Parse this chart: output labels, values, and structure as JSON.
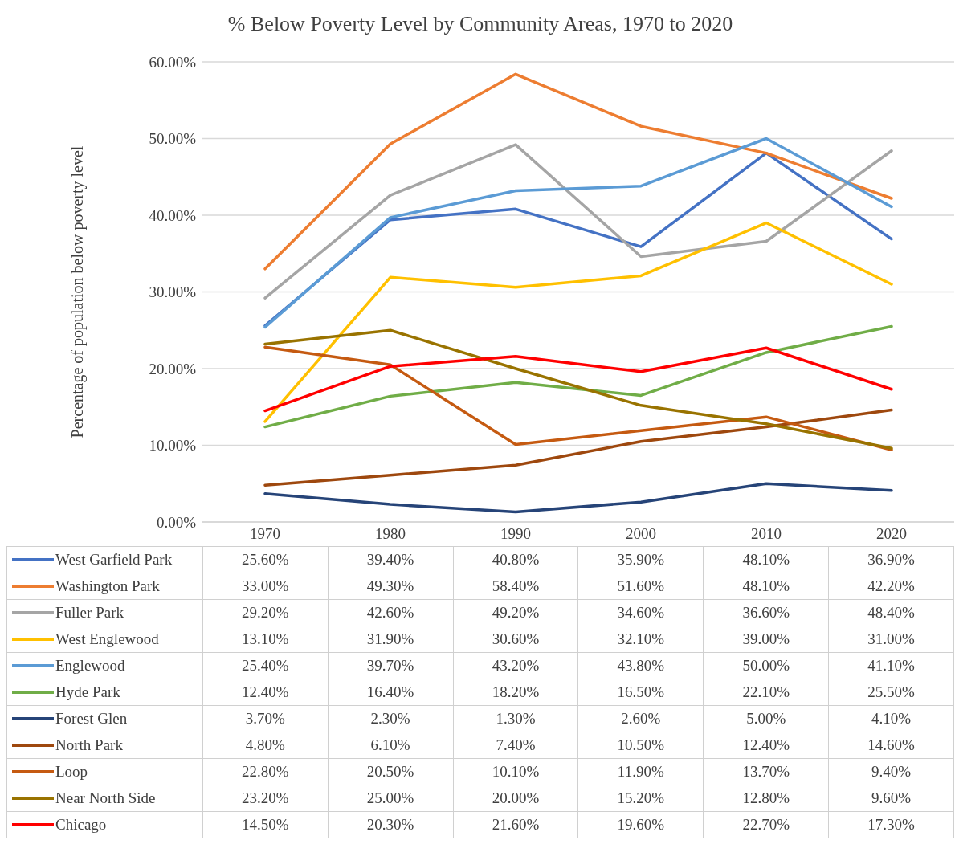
{
  "chart_data": {
    "type": "line",
    "title": "% Below Poverty Level by Community Areas, 1970 to 2020",
    "ylabel": "Percentage of population below poverty level",
    "categories": [
      "1970",
      "1980",
      "1990",
      "2000",
      "2010",
      "2020"
    ],
    "ylim": [
      0,
      60
    ],
    "yticks": [
      {
        "value": 0,
        "label": "0.00%"
      },
      {
        "value": 10,
        "label": "10.00%"
      },
      {
        "value": 20,
        "label": "20.00%"
      },
      {
        "value": 30,
        "label": "30.00%"
      },
      {
        "value": 40,
        "label": "40.00%"
      },
      {
        "value": 50,
        "label": "50.00%"
      },
      {
        "value": 60,
        "label": "60.00%"
      }
    ],
    "grid": "y",
    "legend": "bottom",
    "marker": "none",
    "line_style": "solid",
    "series": [
      {
        "name": "West Garfield Park",
        "color": "#4472c4",
        "values": [
          25.6,
          39.4,
          40.8,
          35.9,
          48.1,
          36.9
        ],
        "value_labels": [
          "25.60%",
          "39.40%",
          "40.80%",
          "35.90%",
          "48.10%",
          "36.90%"
        ]
      },
      {
        "name": "Washington Park",
        "color": "#ed7d31",
        "values": [
          33.0,
          49.3,
          58.4,
          51.6,
          48.1,
          42.2
        ],
        "value_labels": [
          "33.00%",
          "49.30%",
          "58.40%",
          "51.60%",
          "48.10%",
          "42.20%"
        ]
      },
      {
        "name": "Fuller Park",
        "color": "#a5a5a5",
        "values": [
          29.2,
          42.6,
          49.2,
          34.6,
          36.6,
          48.4
        ],
        "value_labels": [
          "29.20%",
          "42.60%",
          "49.20%",
          "34.60%",
          "36.60%",
          "48.40%"
        ]
      },
      {
        "name": "West Englewood",
        "color": "#ffc000",
        "values": [
          13.1,
          31.9,
          30.6,
          32.1,
          39.0,
          31.0
        ],
        "value_labels": [
          "13.10%",
          "31.90%",
          "30.60%",
          "32.10%",
          "39.00%",
          "31.00%"
        ]
      },
      {
        "name": "Englewood",
        "color": "#5b9bd5",
        "values": [
          25.4,
          39.7,
          43.2,
          43.8,
          50.0,
          41.1
        ],
        "value_labels": [
          "25.40%",
          "39.70%",
          "43.20%",
          "43.80%",
          "50.00%",
          "41.10%"
        ]
      },
      {
        "name": "Hyde Park",
        "color": "#70ad47",
        "values": [
          12.4,
          16.4,
          18.2,
          16.5,
          22.1,
          25.5
        ],
        "value_labels": [
          "12.40%",
          "16.40%",
          "18.20%",
          "16.50%",
          "22.10%",
          "25.50%"
        ]
      },
      {
        "name": "Forest Glen",
        "color": "#264478",
        "values": [
          3.7,
          2.3,
          1.3,
          2.6,
          5.0,
          4.1
        ],
        "value_labels": [
          "3.70%",
          "2.30%",
          "1.30%",
          "2.60%",
          "5.00%",
          "4.10%"
        ]
      },
      {
        "name": "North Park",
        "color": "#9e480e",
        "values": [
          4.8,
          6.1,
          7.4,
          10.5,
          12.4,
          14.6
        ],
        "value_labels": [
          "4.80%",
          "6.10%",
          "7.40%",
          "10.50%",
          "12.40%",
          "14.60%"
        ]
      },
      {
        "name": "Loop",
        "color": "#c55a11",
        "values": [
          22.8,
          20.5,
          10.1,
          11.9,
          13.7,
          9.4
        ],
        "value_labels": [
          "22.80%",
          "20.50%",
          "10.10%",
          "11.90%",
          "13.70%",
          "9.40%"
        ]
      },
      {
        "name": "Near North Side",
        "color": "#997300",
        "values": [
          23.2,
          25.0,
          20.0,
          15.2,
          12.8,
          9.6
        ],
        "value_labels": [
          "23.20%",
          "25.00%",
          "20.00%",
          "15.20%",
          "12.80%",
          "9.60%"
        ]
      },
      {
        "name": "Chicago",
        "color": "#ff0000",
        "values": [
          14.5,
          20.3,
          21.6,
          19.6,
          22.7,
          17.3
        ],
        "value_labels": [
          "14.50%",
          "20.30%",
          "21.60%",
          "19.60%",
          "22.70%",
          "17.30%"
        ]
      }
    ]
  }
}
